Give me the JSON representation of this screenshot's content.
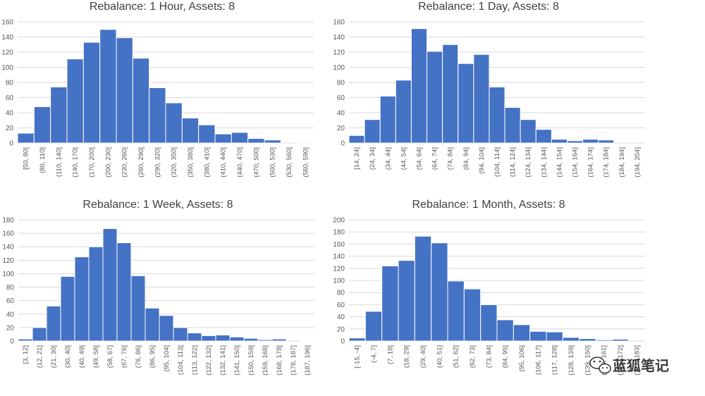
{
  "chart_data": [
    {
      "type": "bar",
      "title": "Rebalance: 1 Hour, Assets: 8",
      "categories": [
        "[50, 80]",
        "(80, 110]",
        "(110, 140]",
        "(140, 170]",
        "(170, 200]",
        "(200, 230]",
        "(230, 260]",
        "(260, 290]",
        "(290, 320]",
        "(320, 350]",
        "(350, 380]",
        "(380, 410]",
        "(410, 440]",
        "(440, 470]",
        "(470, 500]",
        "(500, 530]",
        "(530, 560]",
        "(560, 590]"
      ],
      "values": [
        13,
        48,
        74,
        111,
        133,
        150,
        139,
        112,
        73,
        53,
        33,
        24,
        12,
        14,
        6,
        4,
        0,
        1
      ],
      "yticks": [
        0,
        20,
        40,
        60,
        80,
        100,
        120,
        140,
        160
      ],
      "ylim": [
        0,
        160
      ],
      "xlabel": "",
      "ylabel": "",
      "grid": true
    },
    {
      "type": "bar",
      "title": "Rebalance: 1 Day, Assets: 8",
      "categories": [
        "[14, 24]",
        "(24, 34]",
        "(34, 44]",
        "(44, 54]",
        "(54, 64]",
        "(64, 74]",
        "(74, 84]",
        "(84, 94]",
        "(94, 104]",
        "(104, 114]",
        "(114, 124]",
        "(124, 134]",
        "(134, 144]",
        "(144, 154]",
        "(154, 164]",
        "(164, 174]",
        "(174, 184]",
        "(184, 194]",
        "(194, 204]"
      ],
      "values": [
        10,
        31,
        62,
        83,
        151,
        121,
        130,
        105,
        117,
        74,
        47,
        31,
        18,
        5,
        3,
        5,
        4,
        0,
        0
      ],
      "yticks": [
        0,
        20,
        40,
        60,
        80,
        100,
        120,
        140,
        160
      ],
      "ylim": [
        0,
        160
      ],
      "xlabel": "",
      "ylabel": "",
      "grid": true
    },
    {
      "type": "bar",
      "title": "Rebalance: 1 Week, Assets: 8",
      "categories": [
        "[3, 12]",
        "(12, 21]",
        "(21, 30]",
        "(30, 40]",
        "(40, 49]",
        "(49, 58]",
        "(58, 67]",
        "(67, 76]",
        "(76, 86]",
        "(86, 95]",
        "(95, 104]",
        "(104, 113]",
        "(113, 122]",
        "(122, 132]",
        "(132, 141]",
        "(141, 150]",
        "(150, 159]",
        "(159, 168]",
        "(168, 178]",
        "(178, 187]",
        "(187, 196]"
      ],
      "values": [
        3,
        20,
        52,
        96,
        125,
        140,
        167,
        146,
        97,
        49,
        38,
        20,
        12,
        8,
        9,
        6,
        4,
        2,
        3,
        0,
        1
      ],
      "yticks": [
        0,
        20,
        40,
        60,
        80,
        100,
        120,
        140,
        160,
        180
      ],
      "ylim": [
        0,
        180
      ],
      "xlabel": "",
      "ylabel": "",
      "grid": true
    },
    {
      "type": "bar",
      "title": "Rebalance: 1 Month, Assets: 8",
      "categories": [
        "[-15, -4]",
        "(-4, 7]",
        "(7, 18]",
        "(18, 29]",
        "(29, 40]",
        "(40, 51]",
        "(51, 62]",
        "(62, 73]",
        "(73, 84]",
        "(84, 95]",
        "(95, 106]",
        "(106, 117]",
        "(117, 128]",
        "(128, 139]",
        "(139, 150]",
        "(150, 161]",
        "(161, 172]",
        "(172, 183]"
      ],
      "values": [
        5,
        49,
        124,
        133,
        173,
        162,
        99,
        86,
        60,
        35,
        27,
        16,
        15,
        6,
        4,
        2,
        3,
        0
      ],
      "yticks": [
        0,
        20,
        40,
        60,
        80,
        100,
        120,
        140,
        160,
        180,
        200
      ],
      "ylim": [
        0,
        200
      ],
      "xlabel": "",
      "ylabel": "",
      "grid": true
    }
  ],
  "colors": {
    "bar": "#4472c4",
    "grid": "#d9d9d9",
    "text": "#595959"
  },
  "watermark": {
    "icon": "wechat-icon",
    "text": "蓝狐笔记"
  }
}
